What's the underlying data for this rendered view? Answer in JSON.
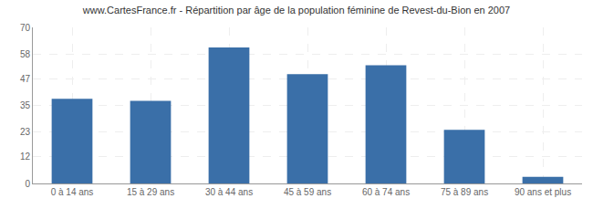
{
  "chart_data": {
    "type": "bar",
    "title": "www.CartesFrance.fr - Répartition par âge de la population féminine de Revest-du-Bion en 2007",
    "categories": [
      "0 à 14 ans",
      "15 à 29 ans",
      "30 à 44 ans",
      "45 à 59 ans",
      "60 à 74 ans",
      "75 à 89 ans",
      "90 ans et plus"
    ],
    "values": [
      38,
      37,
      61,
      49,
      53,
      24,
      3
    ],
    "color": "#3a6fa8",
    "ylim": [
      0,
      70
    ],
    "yticks": [
      0,
      12,
      23,
      35,
      47,
      58,
      70
    ],
    "grid": true
  }
}
